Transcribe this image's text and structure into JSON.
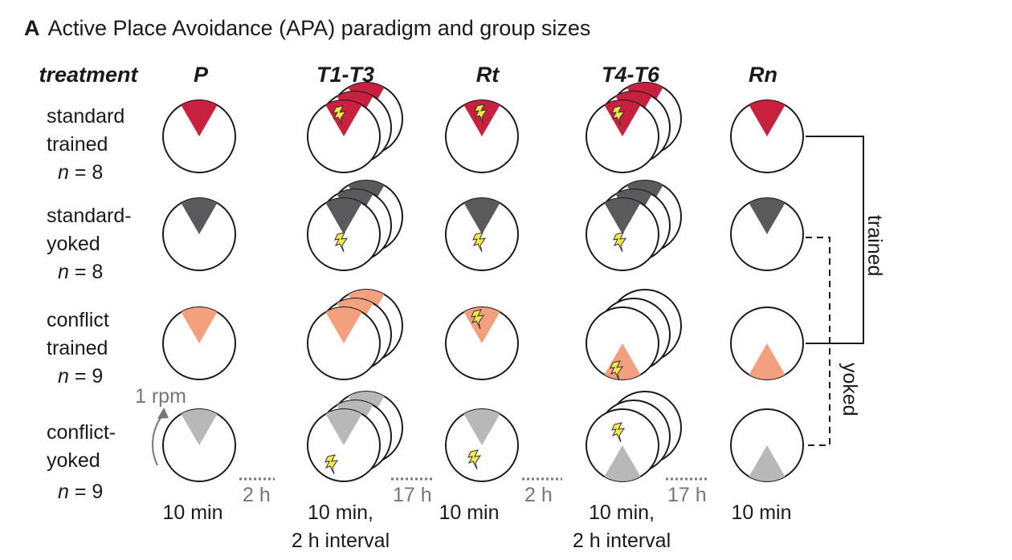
{
  "title": {
    "panel": "A",
    "text": "Active Place Avoidance (APA) paradigm and group sizes"
  },
  "header": {
    "treatment": "treatment",
    "sessions": [
      "P",
      "T1-T3",
      "Rt",
      "T4-T6",
      "Rn"
    ]
  },
  "groups": [
    {
      "line1": "standard",
      "line2": "trained",
      "n_label": "n",
      "n_value": "= 8",
      "color": "#c8203f"
    },
    {
      "line1": "standard-",
      "line2": "yoked",
      "n_label": "n",
      "n_value": "= 8",
      "color": "#5a5a5c"
    },
    {
      "line1": "conflict",
      "line2": "trained",
      "n_label": "n",
      "n_value": "= 9",
      "color": "#f2a07e"
    },
    {
      "line1": "conflict-",
      "line2": "yoked",
      "n_label": "n",
      "n_value": "= 9",
      "color": "#b8b8b8"
    }
  ],
  "intervals": [
    "2 h",
    "17 h",
    "2 h",
    "17 h"
  ],
  "durations": [
    "10 min",
    "10 min,\n2 h interval",
    "10 min",
    "10 min,\n2 h interval",
    "10 min"
  ],
  "rotation": "1 rpm",
  "side_labels": {
    "trained": "trained",
    "yoked": "yoked"
  },
  "colors": {
    "shock": "#f5e84a",
    "arena_stroke": "#1a1a1a",
    "interval_text": "#777777"
  }
}
